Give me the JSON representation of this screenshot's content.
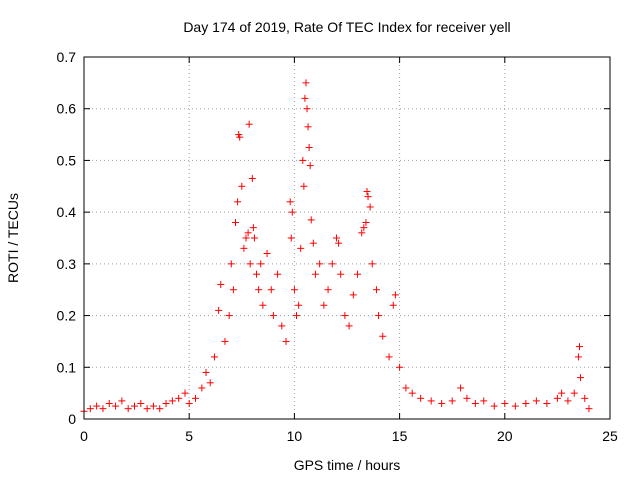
{
  "chart_data": {
    "type": "scatter",
    "title": "Day 174 of 2019, Rate Of TEC Index for receiver yell",
    "xlabel": "GPS time / hours",
    "ylabel": "ROTI / TECUs",
    "xlim": [
      0,
      25
    ],
    "ylim": [
      0,
      0.7
    ],
    "grid": true,
    "marker": "+",
    "color": "#ff0000",
    "x_ticks": [
      {
        "value": 0,
        "label": "0"
      },
      {
        "value": 5,
        "label": "5"
      },
      {
        "value": 10,
        "label": "10"
      },
      {
        "value": 15,
        "label": "15"
      },
      {
        "value": 20,
        "label": "20"
      },
      {
        "value": 25,
        "label": "25"
      }
    ],
    "y_ticks": [
      {
        "value": 0,
        "label": "0"
      },
      {
        "value": 0.1,
        "label": "0.1"
      },
      {
        "value": 0.2,
        "label": "0.2"
      },
      {
        "value": 0.3,
        "label": "0.3"
      },
      {
        "value": 0.4,
        "label": "0.4"
      },
      {
        "value": 0.5,
        "label": "0.5"
      },
      {
        "value": 0.6,
        "label": "0.6"
      },
      {
        "value": 0.7,
        "label": "0.7"
      }
    ],
    "series": [
      {
        "name": "ROTI",
        "points": [
          [
            0.0,
            0.015
          ],
          [
            0.3,
            0.02
          ],
          [
            0.6,
            0.025
          ],
          [
            0.9,
            0.02
          ],
          [
            1.2,
            0.03
          ],
          [
            1.5,
            0.025
          ],
          [
            1.8,
            0.035
          ],
          [
            2.1,
            0.02
          ],
          [
            2.4,
            0.025
          ],
          [
            2.7,
            0.03
          ],
          [
            3.0,
            0.02
          ],
          [
            3.3,
            0.025
          ],
          [
            3.6,
            0.02
          ],
          [
            3.9,
            0.03
          ],
          [
            4.2,
            0.035
          ],
          [
            4.5,
            0.04
          ],
          [
            4.8,
            0.05
          ],
          [
            5.0,
            0.03
          ],
          [
            5.3,
            0.04
          ],
          [
            5.6,
            0.06
          ],
          [
            5.8,
            0.09
          ],
          [
            6.0,
            0.07
          ],
          [
            6.2,
            0.12
          ],
          [
            6.4,
            0.21
          ],
          [
            6.5,
            0.26
          ],
          [
            6.7,
            0.15
          ],
          [
            6.9,
            0.2
          ],
          [
            7.0,
            0.3
          ],
          [
            7.1,
            0.25
          ],
          [
            7.2,
            0.38
          ],
          [
            7.3,
            0.42
          ],
          [
            7.35,
            0.55
          ],
          [
            7.4,
            0.545
          ],
          [
            7.5,
            0.45
          ],
          [
            7.6,
            0.33
          ],
          [
            7.7,
            0.35
          ],
          [
            7.8,
            0.36
          ],
          [
            7.85,
            0.57
          ],
          [
            7.9,
            0.3
          ],
          [
            8.0,
            0.465
          ],
          [
            8.05,
            0.37
          ],
          [
            8.1,
            0.35
          ],
          [
            8.2,
            0.28
          ],
          [
            8.3,
            0.25
          ],
          [
            8.4,
            0.3
          ],
          [
            8.5,
            0.22
          ],
          [
            8.7,
            0.32
          ],
          [
            8.9,
            0.25
          ],
          [
            9.0,
            0.2
          ],
          [
            9.2,
            0.28
          ],
          [
            9.4,
            0.18
          ],
          [
            9.6,
            0.15
          ],
          [
            9.8,
            0.42
          ],
          [
            9.85,
            0.35
          ],
          [
            9.9,
            0.4
          ],
          [
            10.0,
            0.25
          ],
          [
            10.1,
            0.2
          ],
          [
            10.2,
            0.22
          ],
          [
            10.3,
            0.33
          ],
          [
            10.4,
            0.5
          ],
          [
            10.45,
            0.45
          ],
          [
            10.5,
            0.62
          ],
          [
            10.55,
            0.65
          ],
          [
            10.6,
            0.6
          ],
          [
            10.65,
            0.565
          ],
          [
            10.7,
            0.525
          ],
          [
            10.75,
            0.49
          ],
          [
            10.8,
            0.385
          ],
          [
            10.9,
            0.34
          ],
          [
            11.0,
            0.28
          ],
          [
            11.2,
            0.3
          ],
          [
            11.4,
            0.22
          ],
          [
            11.6,
            0.25
          ],
          [
            11.8,
            0.3
          ],
          [
            12.0,
            0.35
          ],
          [
            12.1,
            0.34
          ],
          [
            12.2,
            0.28
          ],
          [
            12.4,
            0.2
          ],
          [
            12.6,
            0.18
          ],
          [
            12.8,
            0.24
          ],
          [
            13.0,
            0.28
          ],
          [
            13.2,
            0.36
          ],
          [
            13.3,
            0.37
          ],
          [
            13.4,
            0.38
          ],
          [
            13.45,
            0.44
          ],
          [
            13.5,
            0.43
          ],
          [
            13.6,
            0.41
          ],
          [
            13.7,
            0.3
          ],
          [
            13.9,
            0.25
          ],
          [
            14.0,
            0.2
          ],
          [
            14.2,
            0.16
          ],
          [
            14.5,
            0.12
          ],
          [
            14.7,
            0.22
          ],
          [
            14.8,
            0.24
          ],
          [
            15.0,
            0.1
          ],
          [
            15.3,
            0.06
          ],
          [
            15.6,
            0.05
          ],
          [
            16.0,
            0.04
          ],
          [
            16.5,
            0.035
          ],
          [
            17.0,
            0.03
          ],
          [
            17.5,
            0.035
          ],
          [
            17.9,
            0.06
          ],
          [
            18.2,
            0.04
          ],
          [
            18.6,
            0.03
          ],
          [
            19.0,
            0.035
          ],
          [
            19.5,
            0.025
          ],
          [
            20.0,
            0.03
          ],
          [
            20.5,
            0.025
          ],
          [
            21.0,
            0.03
          ],
          [
            21.5,
            0.035
          ],
          [
            22.0,
            0.03
          ],
          [
            22.5,
            0.04
          ],
          [
            22.7,
            0.05
          ],
          [
            23.0,
            0.035
          ],
          [
            23.3,
            0.05
          ],
          [
            23.5,
            0.12
          ],
          [
            23.55,
            0.14
          ],
          [
            23.6,
            0.08
          ],
          [
            23.8,
            0.04
          ],
          [
            24.0,
            0.02
          ]
        ]
      }
    ]
  }
}
